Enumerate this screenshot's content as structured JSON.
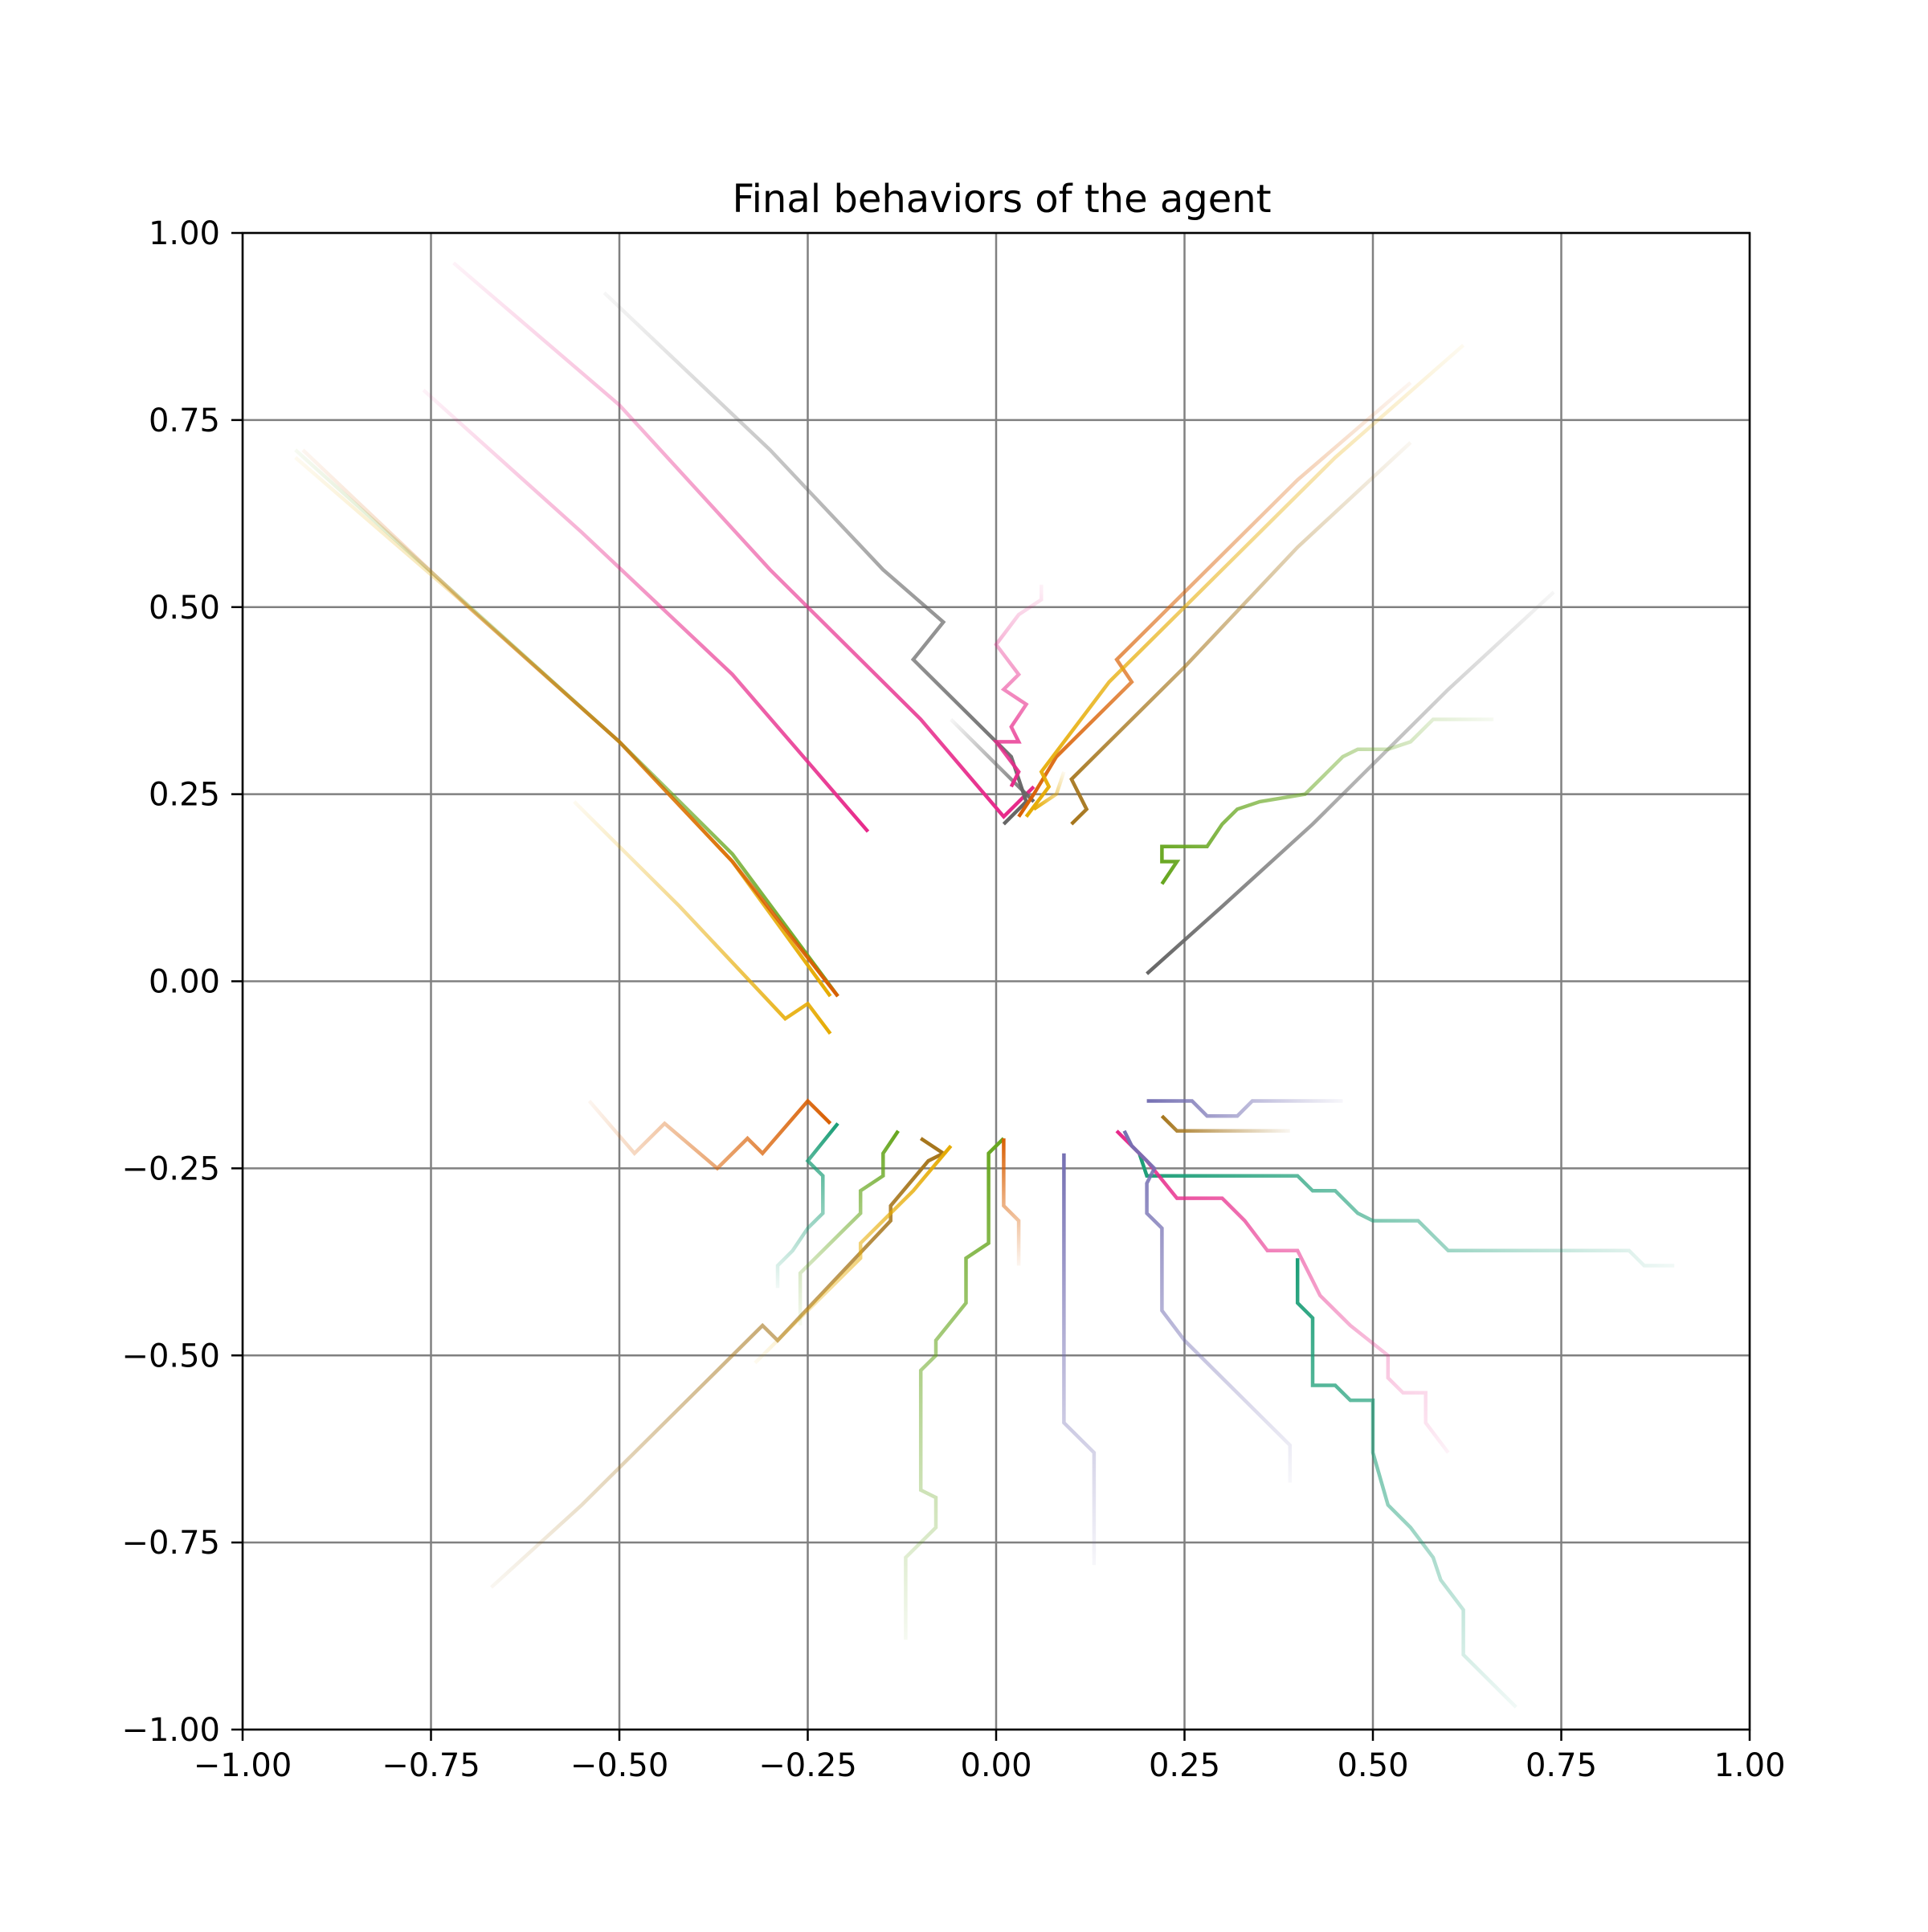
{
  "chart_data": {
    "type": "line",
    "title": "Final behaviors of the agent",
    "xlabel": "",
    "ylabel": "",
    "xlim": [
      -1.0,
      1.0
    ],
    "ylim": [
      -1.0,
      1.0
    ],
    "grid": true,
    "legend": "none",
    "x_ticks": [
      -1.0,
      -0.75,
      -0.5,
      -0.25,
      0.0,
      0.25,
      0.5,
      0.75,
      1.0
    ],
    "y_ticks": [
      -1.0,
      -0.75,
      -0.5,
      -0.25,
      0.0,
      0.25,
      0.5,
      0.75,
      1.0
    ],
    "x_tick_labels": [
      "−1.00",
      "−0.75",
      "−0.50",
      "−0.25",
      "0.00",
      "0.25",
      "0.50",
      "0.75",
      "1.00"
    ],
    "y_tick_labels": [
      "−1.00",
      "−0.75",
      "−0.50",
      "−0.25",
      "0.00",
      "0.25",
      "0.50",
      "0.75",
      "1.00"
    ],
    "series": [
      {
        "color": "#e7298a",
        "points": [
          [
            -0.72,
            0.96
          ],
          [
            -0.5,
            0.77
          ],
          [
            -0.3,
            0.55
          ],
          [
            -0.1,
            0.35
          ],
          [
            0.01,
            0.22
          ],
          [
            0.05,
            0.26
          ]
        ]
      },
      {
        "color": "#e7298a",
        "points": [
          [
            -0.76,
            0.79
          ],
          [
            -0.55,
            0.6
          ],
          [
            -0.35,
            0.41
          ],
          [
            -0.17,
            0.2
          ]
        ]
      },
      {
        "color": "#666666",
        "points": [
          [
            -0.52,
            0.92
          ],
          [
            -0.3,
            0.71
          ],
          [
            -0.15,
            0.55
          ],
          [
            -0.07,
            0.48
          ],
          [
            -0.11,
            0.43
          ],
          [
            0.02,
            0.3
          ],
          [
            0.04,
            0.24
          ],
          [
            0.01,
            0.21
          ]
        ]
      },
      {
        "color": "#666666",
        "points": [
          [
            -0.06,
            0.35
          ],
          [
            0.03,
            0.26
          ],
          [
            0.05,
            0.24
          ]
        ]
      },
      {
        "color": "#e7298a",
        "points": [
          [
            0.06,
            0.53
          ],
          [
            0.06,
            0.51
          ],
          [
            0.03,
            0.49
          ],
          [
            0.0,
            0.45
          ],
          [
            0.03,
            0.41
          ],
          [
            0.01,
            0.39
          ],
          [
            0.04,
            0.37
          ],
          [
            0.02,
            0.34
          ],
          [
            0.03,
            0.32
          ],
          [
            0.0,
            0.32
          ],
          [
            0.03,
            0.28
          ],
          [
            0.02,
            0.26
          ]
        ]
      },
      {
        "color": "#e6ab02",
        "points": [
          [
            -0.93,
            0.7
          ],
          [
            -0.7,
            0.5
          ],
          [
            -0.5,
            0.32
          ],
          [
            -0.35,
            0.16
          ],
          [
            -0.22,
            -0.02
          ]
        ]
      },
      {
        "color": "#66a61e",
        "points": [
          [
            -0.93,
            0.71
          ],
          [
            -0.72,
            0.52
          ],
          [
            -0.5,
            0.32
          ],
          [
            -0.35,
            0.17
          ],
          [
            -0.21,
            -0.02
          ]
        ]
      },
      {
        "color": "#d95f02",
        "points": [
          [
            -0.92,
            0.71
          ],
          [
            -0.7,
            0.5
          ],
          [
            -0.5,
            0.32
          ],
          [
            -0.35,
            0.16
          ],
          [
            -0.21,
            -0.02
          ]
        ]
      },
      {
        "color": "#e6ab02",
        "points": [
          [
            -0.56,
            0.24
          ],
          [
            -0.42,
            0.1
          ],
          [
            -0.28,
            -0.05
          ],
          [
            -0.25,
            -0.03
          ],
          [
            -0.22,
            -0.07
          ]
        ]
      },
      {
        "color": "#d95f02",
        "points": [
          [
            0.55,
            0.8
          ],
          [
            0.4,
            0.67
          ],
          [
            0.25,
            0.52
          ],
          [
            0.16,
            0.43
          ],
          [
            0.18,
            0.4
          ],
          [
            0.08,
            0.3
          ],
          [
            0.05,
            0.25
          ],
          [
            0.03,
            0.22
          ]
        ]
      },
      {
        "color": "#e6ab02",
        "points": [
          [
            0.62,
            0.85
          ],
          [
            0.45,
            0.7
          ],
          [
            0.3,
            0.55
          ],
          [
            0.15,
            0.4
          ],
          [
            0.06,
            0.28
          ],
          [
            0.07,
            0.26
          ],
          [
            0.04,
            0.22
          ]
        ]
      },
      {
        "color": "#a6761d",
        "points": [
          [
            0.55,
            0.72
          ],
          [
            0.4,
            0.58
          ],
          [
            0.25,
            0.42
          ],
          [
            0.1,
            0.27
          ],
          [
            0.12,
            0.23
          ],
          [
            0.1,
            0.21
          ]
        ]
      },
      {
        "color": "#e6ab02",
        "points": [
          [
            0.09,
            0.28
          ],
          [
            0.08,
            0.25
          ],
          [
            0.05,
            0.23
          ]
        ]
      },
      {
        "color": "#666666",
        "points": [
          [
            0.74,
            0.52
          ],
          [
            0.6,
            0.39
          ],
          [
            0.42,
            0.21
          ],
          [
            0.3,
            0.1
          ],
          [
            0.2,
            0.01
          ]
        ]
      },
      {
        "color": "#66a61e",
        "points": [
          [
            0.66,
            0.35
          ],
          [
            0.58,
            0.35
          ],
          [
            0.55,
            0.32
          ],
          [
            0.52,
            0.31
          ],
          [
            0.48,
            0.31
          ],
          [
            0.46,
            0.3
          ],
          [
            0.44,
            0.28
          ],
          [
            0.41,
            0.25
          ],
          [
            0.35,
            0.24
          ],
          [
            0.32,
            0.23
          ],
          [
            0.3,
            0.21
          ],
          [
            0.28,
            0.18
          ],
          [
            0.22,
            0.18
          ],
          [
            0.22,
            0.16
          ],
          [
            0.24,
            0.16
          ],
          [
            0.22,
            0.13
          ]
        ]
      },
      {
        "color": "#7570b3",
        "points": [
          [
            0.46,
            -0.16
          ],
          [
            0.34,
            -0.16
          ],
          [
            0.32,
            -0.18
          ],
          [
            0.28,
            -0.18
          ],
          [
            0.26,
            -0.16
          ],
          [
            0.2,
            -0.16
          ]
        ]
      },
      {
        "color": "#a6761d",
        "points": [
          [
            0.39,
            -0.2
          ],
          [
            0.24,
            -0.2
          ],
          [
            0.22,
            -0.18
          ]
        ]
      },
      {
        "color": "#1b9e77",
        "points": [
          [
            0.9,
            -0.38
          ],
          [
            0.86,
            -0.38
          ],
          [
            0.84,
            -0.36
          ],
          [
            0.6,
            -0.36
          ],
          [
            0.58,
            -0.34
          ],
          [
            0.56,
            -0.32
          ],
          [
            0.5,
            -0.32
          ],
          [
            0.48,
            -0.31
          ],
          [
            0.45,
            -0.28
          ],
          [
            0.42,
            -0.28
          ],
          [
            0.4,
            -0.26
          ],
          [
            0.2,
            -0.26
          ],
          [
            0.19,
            -0.23
          ]
        ]
      },
      {
        "color": "#e7298a",
        "points": [
          [
            0.6,
            -0.63
          ],
          [
            0.57,
            -0.59
          ],
          [
            0.57,
            -0.55
          ],
          [
            0.54,
            -0.55
          ],
          [
            0.52,
            -0.53
          ],
          [
            0.52,
            -0.5
          ],
          [
            0.47,
            -0.46
          ],
          [
            0.43,
            -0.42
          ],
          [
            0.42,
            -0.4
          ],
          [
            0.4,
            -0.36
          ],
          [
            0.36,
            -0.36
          ],
          [
            0.33,
            -0.32
          ],
          [
            0.3,
            -0.29
          ],
          [
            0.24,
            -0.29
          ],
          [
            0.2,
            -0.24
          ],
          [
            0.16,
            -0.2
          ]
        ]
      },
      {
        "color": "#1b9e77",
        "points": [
          [
            0.69,
            -0.97
          ],
          [
            0.62,
            -0.9
          ],
          [
            0.62,
            -0.84
          ],
          [
            0.59,
            -0.8
          ],
          [
            0.58,
            -0.77
          ],
          [
            0.55,
            -0.73
          ],
          [
            0.52,
            -0.7
          ],
          [
            0.5,
            -0.63
          ],
          [
            0.5,
            -0.56
          ],
          [
            0.47,
            -0.56
          ],
          [
            0.45,
            -0.54
          ],
          [
            0.42,
            -0.54
          ],
          [
            0.42,
            -0.45
          ],
          [
            0.4,
            -0.43
          ],
          [
            0.4,
            -0.37
          ]
        ]
      },
      {
        "color": "#7570b3",
        "points": [
          [
            0.39,
            -0.67
          ],
          [
            0.39,
            -0.62
          ],
          [
            0.35,
            -0.58
          ],
          [
            0.25,
            -0.48
          ],
          [
            0.22,
            -0.44
          ],
          [
            0.22,
            -0.33
          ],
          [
            0.2,
            -0.31
          ],
          [
            0.2,
            -0.27
          ],
          [
            0.21,
            -0.25
          ],
          [
            0.19,
            -0.23
          ],
          [
            0.18,
            -0.22
          ],
          [
            0.17,
            -0.2
          ]
        ]
      },
      {
        "color": "#7570b3",
        "points": [
          [
            0.13,
            -0.78
          ],
          [
            0.13,
            -0.63
          ],
          [
            0.09,
            -0.59
          ],
          [
            0.09,
            -0.23
          ]
        ]
      },
      {
        "color": "#66a61e",
        "points": [
          [
            -0.12,
            -0.88
          ],
          [
            -0.12,
            -0.77
          ],
          [
            -0.08,
            -0.73
          ],
          [
            -0.08,
            -0.69
          ],
          [
            -0.1,
            -0.68
          ],
          [
            -0.1,
            -0.52
          ],
          [
            -0.08,
            -0.5
          ],
          [
            -0.08,
            -0.48
          ],
          [
            -0.04,
            -0.43
          ],
          [
            -0.04,
            -0.37
          ],
          [
            -0.01,
            -0.35
          ],
          [
            -0.01,
            -0.23
          ],
          [
            0.01,
            -0.21
          ]
        ]
      },
      {
        "color": "#d95f02",
        "points": [
          [
            0.03,
            -0.38
          ],
          [
            0.03,
            -0.32
          ],
          [
            0.01,
            -0.3
          ],
          [
            0.01,
            -0.21
          ]
        ]
      },
      {
        "color": "#a6761d",
        "points": [
          [
            -0.67,
            -0.81
          ],
          [
            -0.55,
            -0.7
          ],
          [
            -0.4,
            -0.55
          ],
          [
            -0.31,
            -0.46
          ],
          [
            -0.29,
            -0.48
          ],
          [
            -0.14,
            -0.32
          ],
          [
            -0.14,
            -0.3
          ],
          [
            -0.09,
            -0.24
          ],
          [
            -0.07,
            -0.23
          ],
          [
            -0.1,
            -0.21
          ]
        ]
      },
      {
        "color": "#e6ab02",
        "points": [
          [
            -0.32,
            -0.51
          ],
          [
            -0.18,
            -0.37
          ],
          [
            -0.18,
            -0.35
          ],
          [
            -0.11,
            -0.28
          ],
          [
            -0.06,
            -0.22
          ]
        ]
      },
      {
        "color": "#66a61e",
        "points": [
          [
            -0.26,
            -0.46
          ],
          [
            -0.26,
            -0.39
          ],
          [
            -0.2,
            -0.33
          ],
          [
            -0.18,
            -0.31
          ],
          [
            -0.18,
            -0.28
          ],
          [
            -0.15,
            -0.26
          ],
          [
            -0.15,
            -0.23
          ],
          [
            -0.13,
            -0.2
          ]
        ]
      },
      {
        "color": "#1b9e77",
        "points": [
          [
            -0.29,
            -0.41
          ],
          [
            -0.29,
            -0.38
          ],
          [
            -0.27,
            -0.36
          ],
          [
            -0.25,
            -0.33
          ],
          [
            -0.23,
            -0.31
          ],
          [
            -0.23,
            -0.26
          ],
          [
            -0.25,
            -0.24
          ],
          [
            -0.21,
            -0.19
          ]
        ]
      },
      {
        "color": "#d95f02",
        "points": [
          [
            -0.54,
            -0.16
          ],
          [
            -0.48,
            -0.23
          ],
          [
            -0.44,
            -0.19
          ],
          [
            -0.37,
            -0.25
          ],
          [
            -0.33,
            -0.21
          ],
          [
            -0.31,
            -0.23
          ],
          [
            -0.25,
            -0.16
          ],
          [
            -0.22,
            -0.19
          ]
        ]
      }
    ]
  }
}
